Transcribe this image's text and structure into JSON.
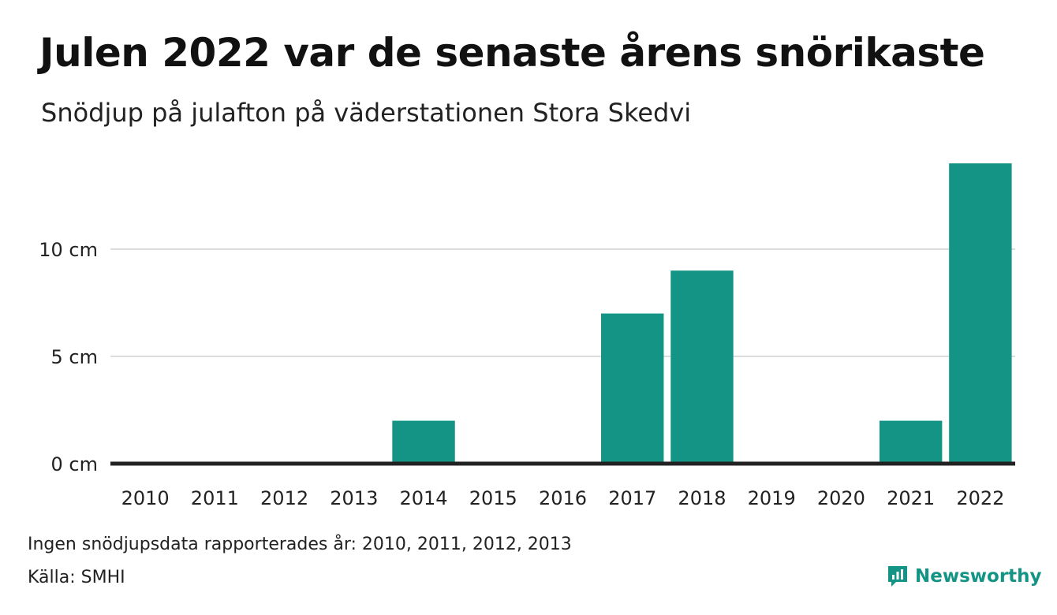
{
  "header": {
    "title": "Julen 2022 var de senaste årens snörikaste",
    "subtitle": "Snödjup på julafton på väderstationen Stora Skedvi"
  },
  "footer": {
    "note": "Ingen snödjupsdata rapporterades år: 2010, 2011, 2012, 2013",
    "source": "Källa: SMHI",
    "logo_text": "Newsworthy"
  },
  "colors": {
    "bar": "#139485",
    "baseline": "#222222",
    "grid": "#dddddd",
    "logo": "#139485"
  },
  "chart_data": {
    "type": "bar",
    "title": "Julen 2022 var de senaste årens snörikaste",
    "subtitle": "Snödjup på julafton på väderstationen Stora Skedvi",
    "categories": [
      "2010",
      "2011",
      "2012",
      "2013",
      "2014",
      "2015",
      "2016",
      "2017",
      "2018",
      "2019",
      "2020",
      "2021",
      "2022"
    ],
    "values": [
      0,
      0,
      0,
      0,
      2,
      0,
      0,
      7,
      9,
      0,
      0,
      2,
      14
    ],
    "yticks": [
      0,
      5,
      10
    ],
    "ytick_labels": [
      "0 cm",
      "5 cm",
      "10 cm"
    ],
    "ylim": [
      0,
      14
    ],
    "grid": true,
    "legend": "none"
  }
}
